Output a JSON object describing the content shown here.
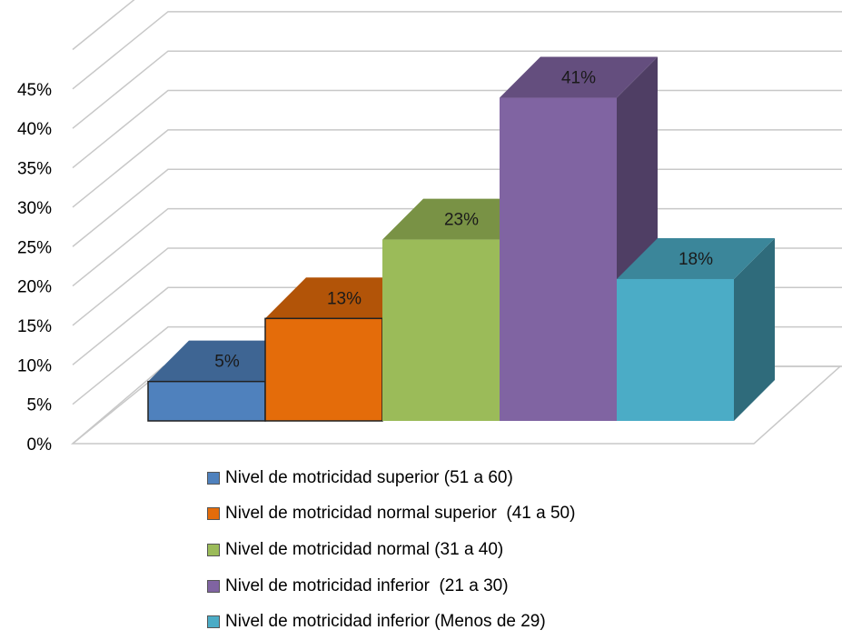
{
  "chart_data": {
    "type": "bar",
    "categories": [
      "Nivel de motricidad superior (51 a 60)",
      "Nivel de motricidad normal superior  (41 a 50)",
      "Nivel de motricidad normal (31 a 40)",
      "Nivel de motricidad inferior  (21 a 30)",
      "Nivel de motricidad inferior (Menos de 29)"
    ],
    "values": [
      5,
      13,
      23,
      41,
      18
    ],
    "data_labels": [
      "5%",
      "13%",
      "23%",
      "41%",
      "18%"
    ],
    "colors": [
      "#4f81bd",
      "#e46c0a",
      "#9bbb59",
      "#8064a2",
      "#4bacc6"
    ],
    "y_ticks": [
      0,
      5,
      10,
      15,
      20,
      25,
      30,
      35,
      40,
      45,
      50
    ],
    "y_tick_labels": [
      "0%",
      "5%",
      "10%",
      "15%",
      "20%",
      "25%",
      "30%",
      "35%",
      "40%",
      "45%",
      ""
    ],
    "ylim": [
      0,
      50
    ],
    "title": "",
    "xlabel": "",
    "ylabel": "",
    "grid": true,
    "style": "3d-column",
    "legend_position": "bottom"
  }
}
